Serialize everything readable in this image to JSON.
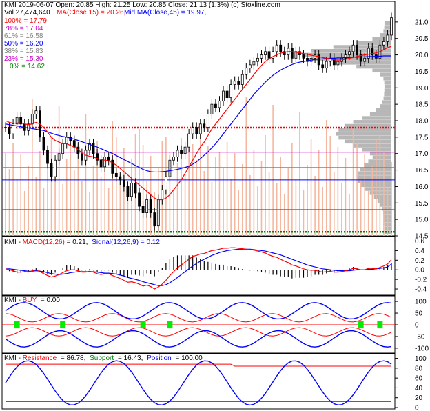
{
  "header": {
    "line1": "KMI 2019-06-07 Open: 20.85 High: 21.25 Low: 20.85 Close: 21.13 (1.3%) (c) Stoxline.com",
    "vol": "Vol 27,474,640",
    "ma15": "MA(Close,15) = 20.26,",
    "ma45": "Mid MA(Close,45) = 19.97,"
  },
  "fib": [
    {
      "label": "100% = 17.79",
      "value": 17.79,
      "color": "#ff0000"
    },
    {
      "label": "78% = 17.04",
      "value": 17.04,
      "color": "#cc00cc"
    },
    {
      "label": "61% = 16.58",
      "value": 16.58,
      "color": "#808080"
    },
    {
      "label": "50% = 16.20",
      "value": 16.2,
      "color": "#0000ff"
    },
    {
      "label": "38% = 15.83",
      "value": 15.83,
      "color": "#808080"
    },
    {
      "label": "23% = 15.30",
      "value": 15.3,
      "color": "#cc00cc"
    },
    {
      "label": "0% = 14.62",
      "value": 14.62,
      "color": "#008000"
    }
  ],
  "panels": {
    "macd": {
      "ticker": "KMI",
      "name": "MACD(12,26)",
      "value": "= 0.21,",
      "signal": "Signal(12,26,9) = 0.12"
    },
    "buy": {
      "ticker": "KMI",
      "name": "BUY",
      "value": "= 0.00"
    },
    "rsp": {
      "ticker": "KMI",
      "r": "Resistance",
      "r_value": "= 86.78,",
      "s": "Support",
      "s_value": "= 16.43,",
      "p": "Position",
      "p_value": "= 100.00"
    }
  },
  "chart_data": [
    {
      "type": "candlestick",
      "title": "KMI 2019-06-07 Open: 20.85 High: 21.25 Low: 20.85 Close: 21.13 (1.3%) (c) Stoxline.com",
      "ylim": [
        14.5,
        21.5
      ],
      "yticks": [
        "21.0",
        "20.5",
        "20.0",
        "19.5",
        "19.0",
        "18.5",
        "18.0",
        "17.5",
        "17.0",
        "16.5",
        "16.0",
        "15.5",
        "15.0",
        "14.5"
      ],
      "close": [
        17.8,
        17.6,
        17.9,
        18.1,
        17.9,
        17.7,
        17.9,
        18.2,
        18.3,
        17.5,
        17.1,
        16.7,
        16.3,
        16.8,
        17.0,
        17.3,
        17.5,
        17.4,
        17.2,
        17.0,
        16.8,
        17.1,
        17.3,
        17.0,
        16.8,
        16.6,
        16.9,
        16.8,
        16.4,
        16.3,
        16.2,
        16.0,
        15.7,
        16.1,
        15.8,
        15.4,
        15.2,
        15.6,
        15.2,
        14.8,
        15.6,
        15.9,
        16.3,
        16.8,
        16.9,
        17.1,
        17.0,
        17.2,
        17.6,
        17.8,
        17.6,
        17.9,
        17.8,
        18.2,
        18.5,
        18.4,
        18.6,
        18.9,
        18.7,
        19.1,
        19.2,
        19.1,
        19.4,
        19.6,
        19.7,
        19.8,
        19.9,
        20.0,
        20.1,
        19.9,
        20.1,
        20.3,
        20.1,
        20.0,
        20.2,
        19.9,
        20.1,
        20.0,
        19.9,
        19.8,
        19.9,
        20.0,
        19.7,
        19.6,
        19.8,
        19.9,
        19.7,
        19.8,
        19.9,
        20.0,
        20.1,
        20.3,
        20.0,
        19.8,
        19.9,
        20.2,
        20.0,
        19.9,
        20.3,
        20.4,
        20.6,
        21.13
      ],
      "ma15": [
        18.0,
        17.95,
        17.92,
        17.93,
        17.93,
        17.9,
        17.88,
        17.9,
        17.95,
        17.9,
        17.8,
        17.65,
        17.5,
        17.4,
        17.35,
        17.3,
        17.3,
        17.25,
        17.2,
        17.12,
        17.02,
        16.95,
        16.92,
        16.9,
        16.85,
        16.82,
        16.8,
        16.78,
        16.72,
        16.65,
        16.55,
        16.45,
        16.35,
        16.25,
        16.15,
        16.05,
        15.95,
        15.85,
        15.75,
        15.65,
        15.6,
        15.6,
        15.65,
        15.75,
        15.9,
        16.05,
        16.2,
        16.4,
        16.6,
        16.8,
        17.0,
        17.2,
        17.35,
        17.55,
        17.75,
        17.9,
        18.05,
        18.2,
        18.35,
        18.5,
        18.65,
        18.8,
        18.95,
        19.1,
        19.25,
        19.4,
        19.55,
        19.68,
        19.8,
        19.88,
        19.95,
        20.0,
        20.05,
        20.08,
        20.1,
        20.1,
        20.08,
        20.06,
        20.04,
        20.02,
        19.99,
        19.97,
        19.95,
        19.92,
        19.9,
        19.88,
        19.85,
        19.84,
        19.85,
        19.87,
        19.9,
        19.92,
        19.95,
        19.98,
        20.0,
        20.02,
        20.04,
        20.06,
        20.1,
        20.16,
        20.22,
        20.26
      ],
      "ma45": [
        17.9,
        17.88,
        17.86,
        17.84,
        17.82,
        17.8,
        17.78,
        17.76,
        17.74,
        17.72,
        17.7,
        17.66,
        17.62,
        17.58,
        17.55,
        17.52,
        17.5,
        17.47,
        17.44,
        17.4,
        17.36,
        17.32,
        17.28,
        17.24,
        17.2,
        17.15,
        17.1,
        17.05,
        17.0,
        16.94,
        16.88,
        16.82,
        16.76,
        16.7,
        16.64,
        16.58,
        16.52,
        16.48,
        16.45,
        16.44,
        16.44,
        16.45,
        16.46,
        16.48,
        16.5,
        16.52,
        16.55,
        16.58,
        16.62,
        16.68,
        16.75,
        16.85,
        16.95,
        17.05,
        17.18,
        17.3,
        17.45,
        17.6,
        17.75,
        17.9,
        18.05,
        18.2,
        18.35,
        18.5,
        18.65,
        18.8,
        18.93,
        19.05,
        19.17,
        19.28,
        19.38,
        19.46,
        19.54,
        19.6,
        19.66,
        19.71,
        19.75,
        19.78,
        19.8,
        19.82,
        19.84,
        19.86,
        19.87,
        19.88,
        19.89,
        19.9,
        19.9,
        19.91,
        19.91,
        19.92,
        19.92,
        19.93,
        19.93,
        19.94,
        19.94,
        19.95,
        19.95,
        19.96,
        19.96,
        19.97,
        19.97,
        19.97
      ]
    },
    {
      "type": "line",
      "title": "KMI - MACD(12,26) = 0.21, Signal(12,26,9) = 0.12",
      "ylim": [
        -0.5,
        0.65
      ],
      "yticks": [
        "0.6",
        "0.4",
        "0.2",
        "0.0",
        "-0.2",
        "-0.4"
      ],
      "series": [
        {
          "name": "MACD(12,26)",
          "color": "#ff0000",
          "values": [
            0.02,
            0.0,
            -0.02,
            -0.05,
            -0.05,
            -0.04,
            -0.05,
            -0.02,
            0.0,
            -0.04,
            -0.08,
            -0.12,
            -0.15,
            -0.13,
            -0.1,
            -0.06,
            -0.02,
            0.0,
            0.0,
            -0.02,
            -0.05,
            -0.05,
            -0.03,
            -0.05,
            -0.08,
            -0.1,
            -0.08,
            -0.08,
            -0.12,
            -0.15,
            -0.18,
            -0.22,
            -0.26,
            -0.25,
            -0.27,
            -0.3,
            -0.34,
            -0.32,
            -0.35,
            -0.4,
            -0.36,
            -0.3,
            -0.22,
            -0.12,
            -0.04,
            0.04,
            0.1,
            0.16,
            0.22,
            0.28,
            0.3,
            0.33,
            0.34,
            0.37,
            0.4,
            0.41,
            0.43,
            0.45,
            0.45,
            0.46,
            0.46,
            0.45,
            0.44,
            0.43,
            0.42,
            0.41,
            0.39,
            0.37,
            0.35,
            0.31,
            0.28,
            0.26,
            0.22,
            0.18,
            0.15,
            0.1,
            0.08,
            0.05,
            0.02,
            0.0,
            -0.01,
            -0.01,
            -0.03,
            -0.05,
            -0.04,
            -0.03,
            -0.05,
            -0.05,
            -0.04,
            -0.02,
            0.0,
            0.03,
            0.02,
            0.0,
            0.0,
            0.03,
            0.03,
            0.02,
            0.05,
            0.08,
            0.12,
            0.21
          ]
        },
        {
          "name": "Signal(12,26,9)",
          "color": "#0000ff",
          "values": [
            0.02,
            0.02,
            0.01,
            0.0,
            -0.01,
            -0.02,
            -0.03,
            -0.03,
            -0.02,
            -0.03,
            -0.04,
            -0.06,
            -0.08,
            -0.09,
            -0.1,
            -0.09,
            -0.08,
            -0.06,
            -0.05,
            -0.04,
            -0.04,
            -0.04,
            -0.04,
            -0.04,
            -0.05,
            -0.06,
            -0.07,
            -0.07,
            -0.08,
            -0.09,
            -0.11,
            -0.13,
            -0.16,
            -0.18,
            -0.2,
            -0.22,
            -0.25,
            -0.27,
            -0.29,
            -0.31,
            -0.33,
            -0.33,
            -0.31,
            -0.27,
            -0.22,
            -0.16,
            -0.1,
            -0.04,
            0.02,
            0.08,
            0.13,
            0.18,
            0.22,
            0.26,
            0.3,
            0.33,
            0.36,
            0.38,
            0.4,
            0.41,
            0.42,
            0.43,
            0.43,
            0.43,
            0.43,
            0.42,
            0.41,
            0.4,
            0.39,
            0.37,
            0.35,
            0.33,
            0.31,
            0.28,
            0.25,
            0.22,
            0.19,
            0.16,
            0.13,
            0.1,
            0.08,
            0.06,
            0.04,
            0.02,
            0.01,
            0.0,
            -0.01,
            -0.02,
            -0.02,
            -0.02,
            -0.02,
            -0.01,
            0.0,
            0.0,
            0.0,
            0.01,
            0.01,
            0.02,
            0.03,
            0.04,
            0.06,
            0.12
          ]
        }
      ]
    },
    {
      "type": "line",
      "title": "KMI - BUY = 0.00",
      "ylim": [
        -115,
        115
      ],
      "yticks": [
        "100",
        "50",
        "0",
        "-50",
        "-100"
      ],
      "buy_signals": [
        4,
        18,
        43,
        51,
        110,
        116
      ],
      "series": [
        {
          "name": "BUY",
          "color": "#0000ff",
          "values": []
        }
      ]
    },
    {
      "type": "line",
      "title": "KMI - Resistance = 86.78, Support = 16.43, Position = 100.00",
      "ylim": [
        0,
        105
      ],
      "yticks": [
        "100",
        "80",
        "60",
        "40",
        "20",
        "0"
      ],
      "series": [
        {
          "name": "Resistance",
          "color": "#ff0000",
          "values": []
        },
        {
          "name": "Support",
          "color": "#008000",
          "values": []
        },
        {
          "name": "Position",
          "color": "#0000ff",
          "values": []
        }
      ]
    }
  ]
}
